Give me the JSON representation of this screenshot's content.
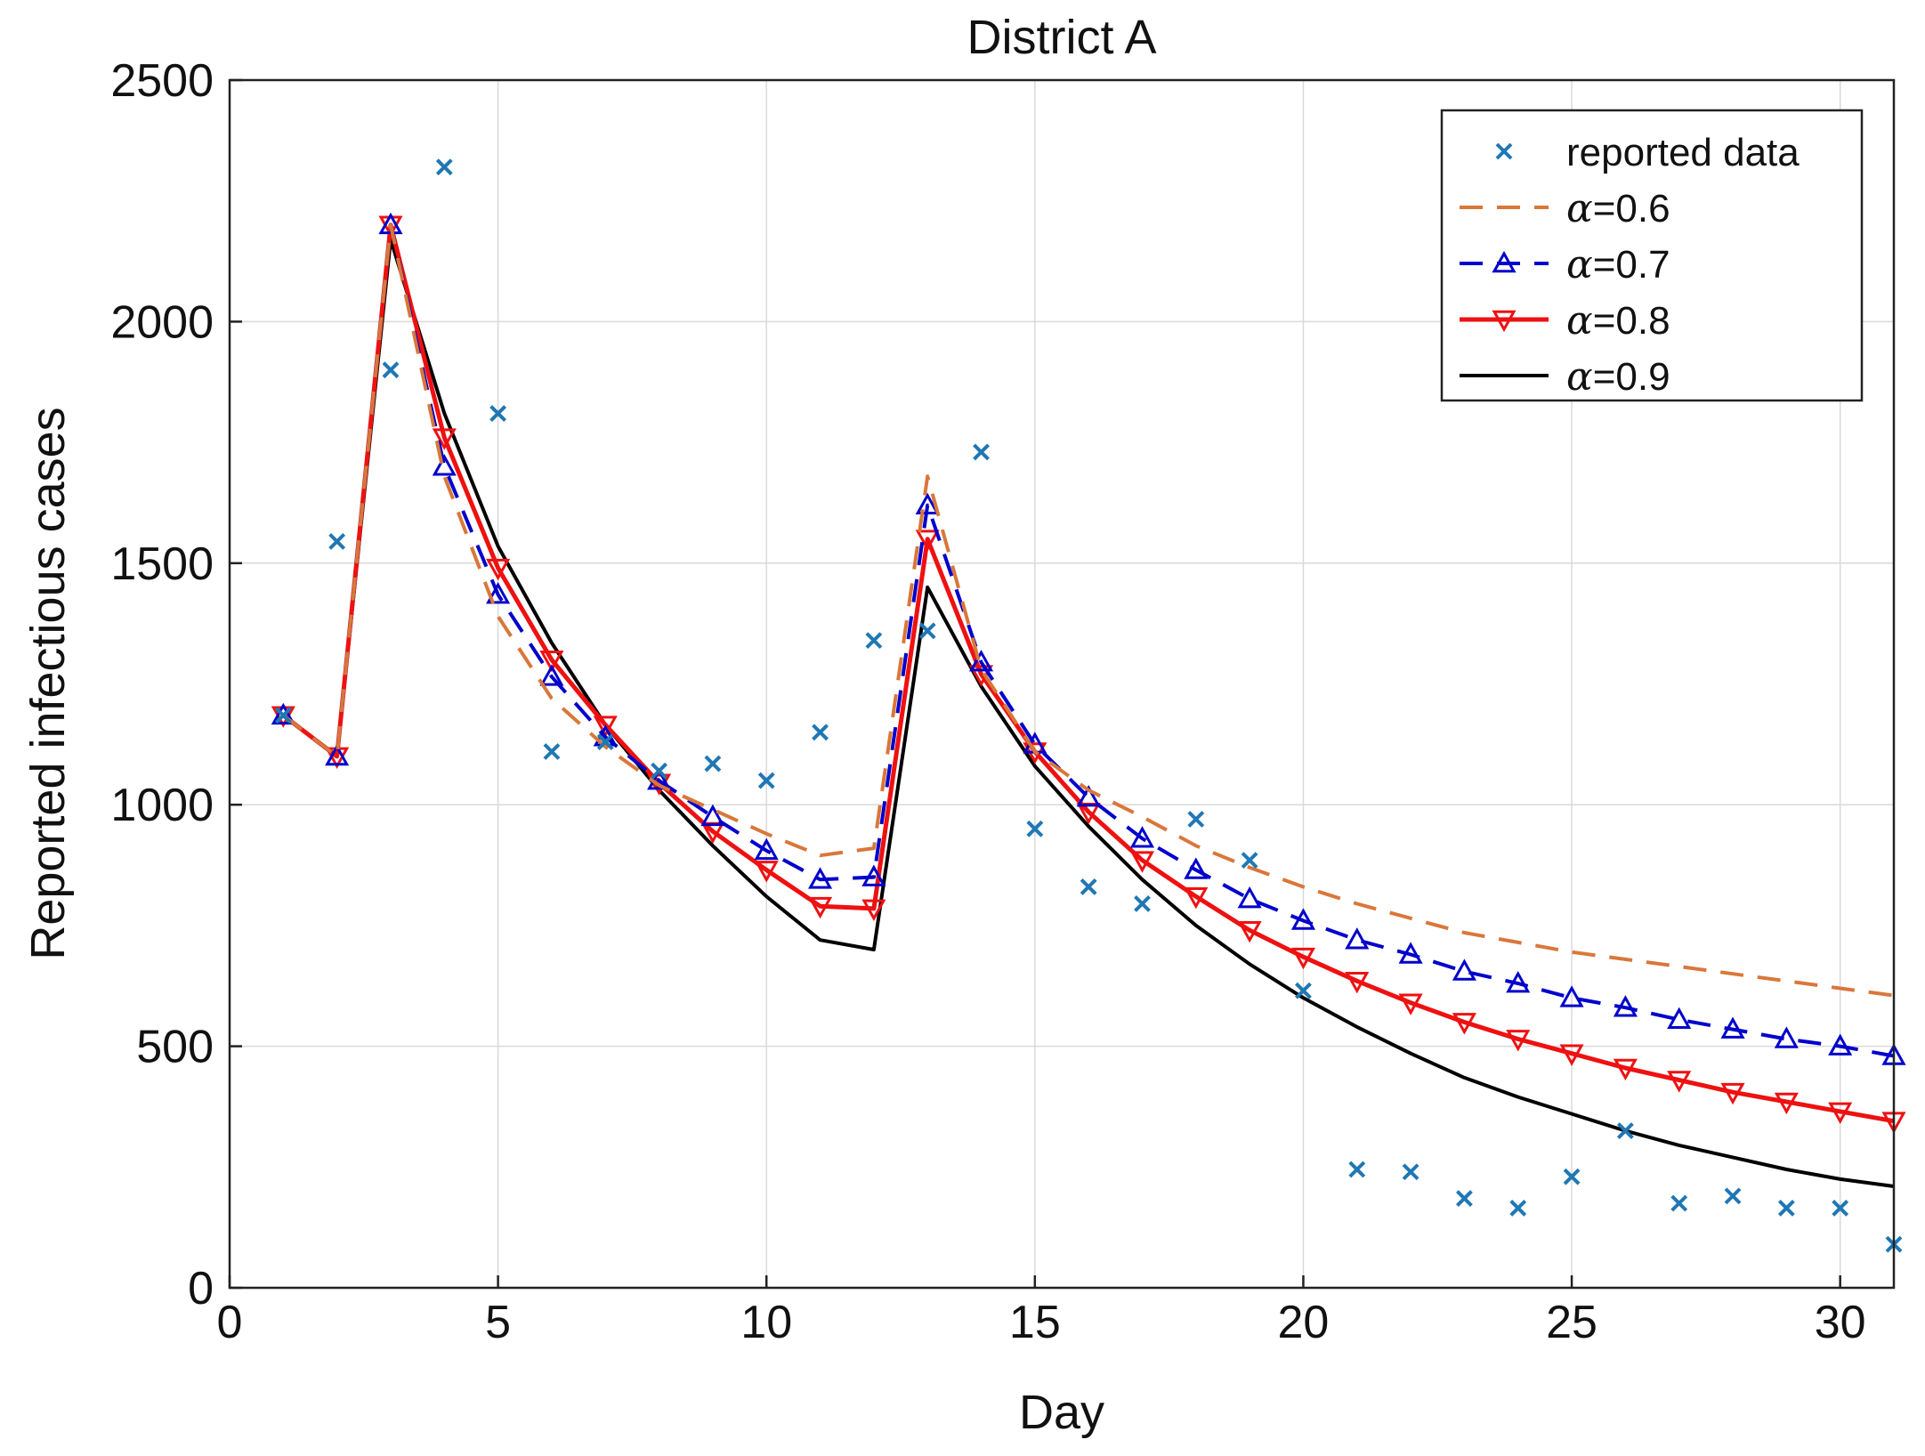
{
  "chart_data": {
    "type": "line",
    "title": "District A",
    "xlabel": "Day",
    "ylabel": "Reported infectious cases",
    "xlim": [
      0,
      31
    ],
    "ylim": [
      0,
      2500
    ],
    "xticks": [
      0,
      5,
      10,
      15,
      20,
      25,
      30
    ],
    "yticks": [
      0,
      500,
      1000,
      1500,
      2000,
      2500
    ],
    "grid": true,
    "legend_position": "top-right",
    "x": [
      1,
      2,
      3,
      4,
      5,
      6,
      7,
      8,
      9,
      10,
      11,
      12,
      13,
      14,
      15,
      16,
      17,
      18,
      19,
      20,
      21,
      22,
      23,
      24,
      25,
      26,
      27,
      28,
      29,
      30,
      31
    ],
    "series": [
      {
        "name": "reported data",
        "legend_prefix": "",
        "legend_label": "reported data",
        "style": "markers-x",
        "color": "#1f77b4",
        "values": [
          1185,
          1545,
          1900,
          2320,
          1810,
          1110,
          1130,
          1070,
          1085,
          1050,
          1150,
          1340,
          1360,
          1730,
          950,
          830,
          795,
          970,
          885,
          615,
          245,
          240,
          185,
          165,
          230,
          325,
          175,
          190,
          165,
          165,
          90
        ]
      },
      {
        "name": "α=0.6",
        "legend_prefix": "α",
        "legend_label": "=0.6",
        "style": "dashed",
        "color": "#d9773a",
        "values": [
          1185,
          1100,
          2200,
          1680,
          1390,
          1220,
          1120,
          1040,
          990,
          940,
          895,
          910,
          1680,
          1280,
          1110,
          1030,
          975,
          915,
          870,
          830,
          795,
          765,
          735,
          715,
          695,
          680,
          665,
          650,
          635,
          620,
          605
        ]
      },
      {
        "name": "α=0.7",
        "legend_prefix": "α",
        "legend_label": "=0.7",
        "style": "dash-triangle-up",
        "color": "#0000cc",
        "values": [
          1185,
          1100,
          2200,
          1700,
          1435,
          1265,
          1140,
          1050,
          975,
          905,
          845,
          850,
          1620,
          1295,
          1125,
          1015,
          930,
          865,
          805,
          760,
          720,
          690,
          655,
          630,
          600,
          580,
          555,
          535,
          515,
          500,
          480
        ]
      },
      {
        "name": "α=0.8",
        "legend_prefix": "α",
        "legend_label": "=0.8",
        "style": "solid-triangle-down",
        "color": "#ee1111",
        "values": [
          1185,
          1100,
          2200,
          1760,
          1490,
          1300,
          1165,
          1045,
          945,
          865,
          790,
          785,
          1550,
          1270,
          1110,
          985,
          885,
          810,
          740,
          685,
          635,
          590,
          550,
          515,
          485,
          455,
          430,
          405,
          385,
          365,
          345
        ]
      },
      {
        "name": "α=0.9",
        "legend_prefix": "α",
        "legend_label": "=0.9",
        "style": "solid",
        "color": "#000000",
        "values": [
          1185,
          1100,
          2170,
          1810,
          1535,
          1335,
          1165,
          1030,
          915,
          810,
          720,
          700,
          1450,
          1245,
          1080,
          955,
          845,
          750,
          670,
          600,
          540,
          485,
          435,
          395,
          360,
          325,
          295,
          270,
          245,
          225,
          210
        ]
      }
    ]
  }
}
